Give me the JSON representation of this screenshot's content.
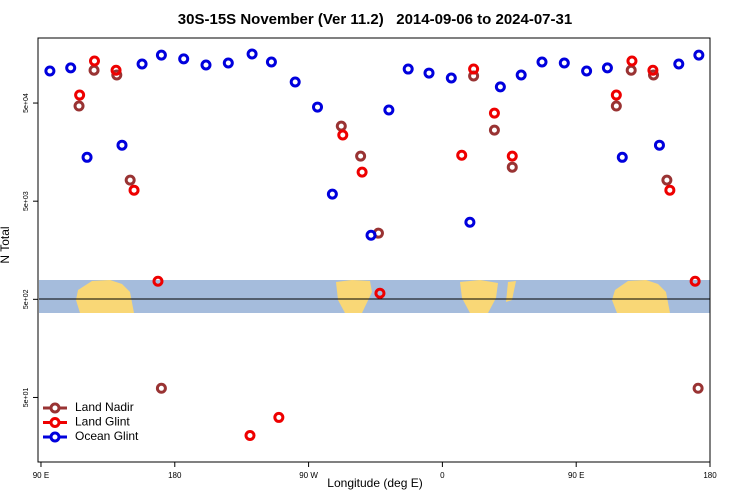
{
  "chart_data": {
    "type": "scatter",
    "title": "30S-15S November (Ver 11.2)   2014-09-06 to 2024-07-31",
    "xlabel": "Longitude (deg E)",
    "ylabel": "N Total",
    "xlim": [
      88,
      540
    ],
    "ylim": [
      11,
      230000
    ],
    "log_y": true,
    "legend": "lower left",
    "xticks": [
      {
        "value": 90,
        "label": "90 E"
      },
      {
        "value": 180,
        "label": "180"
      },
      {
        "value": 270,
        "label": "90 W"
      },
      {
        "value": 360,
        "label": "0"
      },
      {
        "value": 450,
        "label": "90 E"
      },
      {
        "value": 540,
        "label": "180"
      }
    ],
    "yticks": [
      {
        "value": 50,
        "label": "5e+01"
      },
      {
        "value": 500,
        "label": "5e+02"
      },
      {
        "value": 5000,
        "label": "5e+03"
      },
      {
        "value": 50000,
        "label": "5e+04"
      }
    ],
    "series": [
      {
        "name": "Land Nadir",
        "color": "#993333",
        "x": [
          115.6,
          125.7,
          141,
          150,
          171,
          292,
          305,
          317,
          381,
          395,
          407,
          477,
          487,
          502,
          511,
          532
        ],
        "values": [
          46600,
          108000,
          96500,
          8200,
          62,
          29100,
          14400,
          2360,
          94300,
          26500,
          11100,
          46600,
          108000,
          96500,
          8200,
          62
        ]
      },
      {
        "name": "Land Glint",
        "color": "#ee0000",
        "x": [
          116,
          126,
          140.5,
          152.6,
          168.7,
          230.6,
          250,
          293,
          306,
          318,
          373,
          381,
          395,
          407,
          477,
          487.5,
          501.6,
          513,
          530
        ],
        "values": [
          60300,
          134000,
          108000,
          6470,
          764,
          20.5,
          31.3,
          23600,
          9880,
          576,
          14700,
          111000,
          39500,
          14400,
          60300,
          134000,
          108000,
          6470,
          764
        ]
      },
      {
        "name": "Ocean Glint",
        "color": "#0000dd",
        "x": [
          96,
          110,
          121,
          144.5,
          158,
          171,
          186,
          201,
          216,
          232,
          245,
          261,
          276,
          286,
          312,
          324,
          337,
          351,
          366,
          378.5,
          399,
          413,
          427,
          442,
          457,
          471,
          481,
          506,
          519,
          532.5
        ],
        "values": [
          106000,
          114000,
          14000,
          18600,
          125000,
          154000,
          141000,
          122000,
          128000,
          158000,
          131000,
          82000,
          45500,
          5900,
          2250,
          42500,
          111000,
          101000,
          90000,
          3050,
          73000,
          96500,
          131000,
          128000,
          106000,
          114000,
          14000,
          18600,
          125000,
          154000
        ]
      }
    ]
  }
}
